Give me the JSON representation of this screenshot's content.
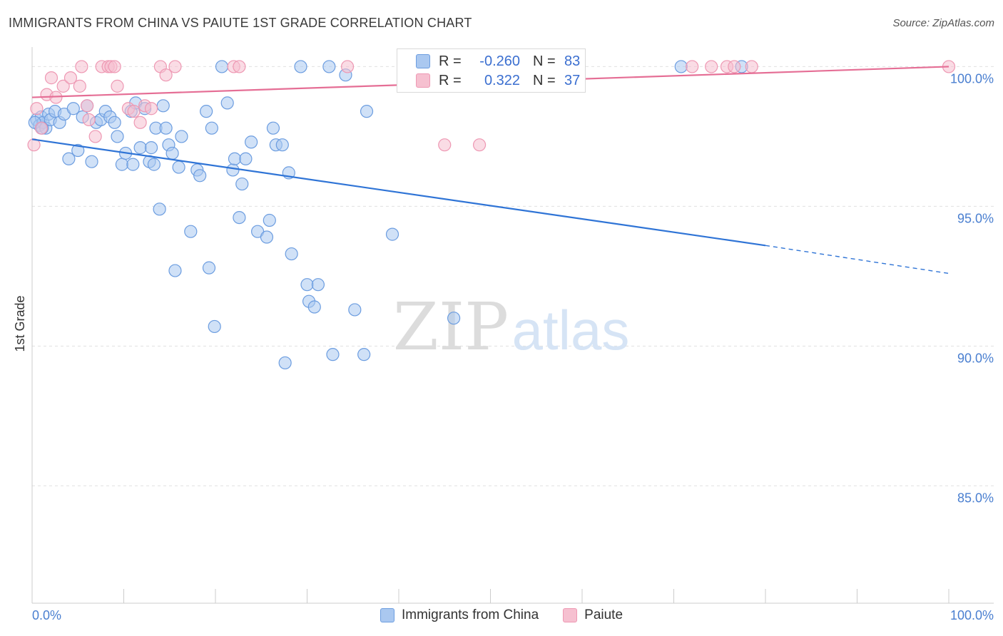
{
  "title": "IMMIGRANTS FROM CHINA VS PAIUTE 1ST GRADE CORRELATION CHART",
  "source": "Source: ZipAtlas.com",
  "watermark": {
    "zip": "ZIP",
    "atlas": "atlas"
  },
  "colors": {
    "blue_fill": "#aac8f0",
    "blue_stroke": "#6c9de0",
    "blue_line": "#2f74d6",
    "pink_fill": "#f6c0d0",
    "pink_stroke": "#ee98b3",
    "pink_line": "#e56e95",
    "tick_label": "#4a7fd0",
    "grid": "#e0e0e0"
  },
  "stats": [
    {
      "r_label": "R =",
      "r_value": "-0.260",
      "n_label": "N =",
      "n_value": "83"
    },
    {
      "r_label": "R =",
      "r_value": "0.322",
      "n_label": "N =",
      "n_value": "37"
    }
  ],
  "chart_data": {
    "type": "scatter",
    "title": "IMMIGRANTS FROM CHINA VS PAIUTE 1ST GRADE CORRELATION CHART",
    "xlabel": "",
    "ylabel": "1st Grade",
    "xlim": [
      0,
      100
    ],
    "ylim": [
      80.8,
      100.7
    ],
    "x_tick_labels": [
      "0.0%",
      "100.0%"
    ],
    "y_ticks": [
      100,
      95,
      90,
      85
    ],
    "y_tick_labels": [
      "100.0%",
      "95.0%",
      "90.0%",
      "85.0%"
    ],
    "grid": true,
    "legend_position": "bottom",
    "series": [
      {
        "name": "Immigrants from China",
        "color": "#6c9de0",
        "trend": {
          "x0": 0,
          "y0": 97.4,
          "x1": 80,
          "y1": 93.6,
          "dash_to_x": 100,
          "dash_to_y": 92.6
        },
        "points": [
          [
            0.5,
            98.1
          ],
          [
            0.8,
            97.9
          ],
          [
            1.0,
            98.2
          ],
          [
            1.2,
            98.0
          ],
          [
            1.5,
            97.8
          ],
          [
            1.8,
            98.3
          ],
          [
            2.0,
            98.1
          ],
          [
            2.5,
            98.4
          ],
          [
            3.0,
            98.0
          ],
          [
            3.5,
            98.3
          ],
          [
            4.0,
            96.7
          ],
          [
            4.5,
            98.5
          ],
          [
            5.0,
            97.0
          ],
          [
            5.5,
            98.2
          ],
          [
            6.0,
            98.6
          ],
          [
            6.5,
            96.6
          ],
          [
            7.0,
            98.0
          ],
          [
            7.5,
            98.1
          ],
          [
            8.0,
            98.4
          ],
          [
            8.5,
            98.2
          ],
          [
            9.0,
            98.0
          ],
          [
            9.3,
            97.5
          ],
          [
            9.8,
            96.5
          ],
          [
            10.2,
            96.9
          ],
          [
            10.8,
            98.4
          ],
          [
            11.0,
            96.5
          ],
          [
            11.3,
            98.7
          ],
          [
            11.8,
            97.1
          ],
          [
            12.3,
            98.5
          ],
          [
            12.8,
            96.6
          ],
          [
            13.0,
            97.1
          ],
          [
            13.3,
            96.5
          ],
          [
            13.5,
            97.8
          ],
          [
            13.9,
            94.9
          ],
          [
            14.3,
            98.6
          ],
          [
            14.6,
            97.8
          ],
          [
            14.9,
            97.2
          ],
          [
            15.3,
            96.9
          ],
          [
            15.6,
            92.7
          ],
          [
            16.0,
            96.4
          ],
          [
            16.3,
            97.5
          ],
          [
            17.3,
            94.1
          ],
          [
            18.0,
            96.3
          ],
          [
            18.3,
            96.1
          ],
          [
            19.0,
            98.4
          ],
          [
            19.3,
            92.8
          ],
          [
            19.6,
            97.8
          ],
          [
            19.9,
            90.7
          ],
          [
            20.7,
            100.0
          ],
          [
            21.3,
            98.7
          ],
          [
            21.9,
            96.3
          ],
          [
            22.1,
            96.7
          ],
          [
            22.6,
            94.6
          ],
          [
            22.9,
            95.8
          ],
          [
            23.3,
            96.7
          ],
          [
            23.9,
            97.3
          ],
          [
            24.6,
            94.1
          ],
          [
            25.6,
            93.9
          ],
          [
            25.9,
            94.5
          ],
          [
            26.3,
            97.8
          ],
          [
            26.6,
            97.2
          ],
          [
            27.3,
            97.2
          ],
          [
            27.6,
            89.4
          ],
          [
            28.0,
            96.2
          ],
          [
            28.3,
            93.3
          ],
          [
            29.3,
            100.0
          ],
          [
            30.0,
            92.2
          ],
          [
            30.2,
            91.6
          ],
          [
            30.8,
            91.4
          ],
          [
            31.2,
            92.2
          ],
          [
            32.4,
            100.0
          ],
          [
            32.8,
            89.7
          ],
          [
            34.2,
            99.7
          ],
          [
            35.2,
            91.3
          ],
          [
            36.2,
            89.7
          ],
          [
            36.5,
            98.4
          ],
          [
            39.3,
            94.0
          ],
          [
            41.2,
            100.0
          ],
          [
            46.0,
            91.0
          ],
          [
            70.8,
            100.0
          ],
          [
            77.4,
            100.0
          ],
          [
            0.3,
            98.0
          ],
          [
            1.1,
            97.8
          ]
        ]
      },
      {
        "name": "Paiute",
        "color": "#ee98b3",
        "trend": {
          "x0": 0,
          "y0": 98.9,
          "x1": 100,
          "y1": 100.0
        },
        "points": [
          [
            0.2,
            97.2
          ],
          [
            0.5,
            98.5
          ],
          [
            1.0,
            97.8
          ],
          [
            1.6,
            99.0
          ],
          [
            2.1,
            99.6
          ],
          [
            2.6,
            98.9
          ],
          [
            3.4,
            99.3
          ],
          [
            4.2,
            99.6
          ],
          [
            5.2,
            99.3
          ],
          [
            5.4,
            100.0
          ],
          [
            6.0,
            98.6
          ],
          [
            6.2,
            98.1
          ],
          [
            6.9,
            97.5
          ],
          [
            7.6,
            100.0
          ],
          [
            8.3,
            100.0
          ],
          [
            8.6,
            100.0
          ],
          [
            9.0,
            100.0
          ],
          [
            9.3,
            99.3
          ],
          [
            10.5,
            98.5
          ],
          [
            11.1,
            98.4
          ],
          [
            11.8,
            98.0
          ],
          [
            12.3,
            98.6
          ],
          [
            13.0,
            98.5
          ],
          [
            14.0,
            100.0
          ],
          [
            14.6,
            99.7
          ],
          [
            15.6,
            100.0
          ],
          [
            22.0,
            100.0
          ],
          [
            22.6,
            100.0
          ],
          [
            34.4,
            100.0
          ],
          [
            45.0,
            97.2
          ],
          [
            48.8,
            97.2
          ],
          [
            72.0,
            100.0
          ],
          [
            74.1,
            100.0
          ],
          [
            75.8,
            100.0
          ],
          [
            76.6,
            100.0
          ],
          [
            78.5,
            100.0
          ],
          [
            100.0,
            100.0
          ]
        ]
      }
    ]
  }
}
